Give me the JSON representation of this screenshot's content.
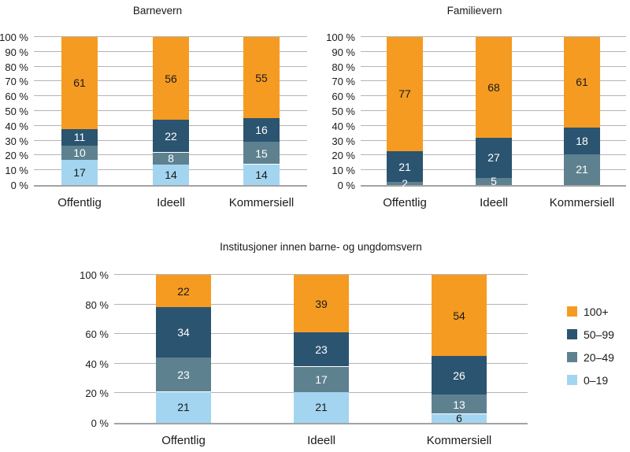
{
  "series_styles": {
    "100+": {
      "fill": "#F59B22",
      "value_label_color": "#1A1A1A"
    },
    "50–99": {
      "fill": "#2B5470",
      "value_label_color": "#FFFFFF"
    },
    "20–49": {
      "fill": "#5E8190",
      "value_label_color": "#FFFFFF"
    },
    "0–19": {
      "fill": "#A3D5F0",
      "value_label_color": "#1A1A1A"
    }
  },
  "legend": {
    "position": "right",
    "items": [
      {
        "label": "100+",
        "color": "#F59B22"
      },
      {
        "label": "50–99",
        "color": "#2B5470"
      },
      {
        "label": "20–49",
        "color": "#5E8190"
      },
      {
        "label": "0–19",
        "color": "#A3D5F0"
      }
    ]
  },
  "chart_data": [
    {
      "type": "bar",
      "stacked": true,
      "title": "Barnevern",
      "categories": [
        "Offentlig",
        "Ideell",
        "Kommersiell"
      ],
      "series": [
        {
          "name": "0–19",
          "values": [
            17,
            14,
            14
          ]
        },
        {
          "name": "20–49",
          "values": [
            10,
            8,
            15
          ]
        },
        {
          "name": "50–99",
          "values": [
            11,
            22,
            16
          ]
        },
        {
          "name": "100+",
          "values": [
            61,
            56,
            55
          ]
        }
      ],
      "ylim": [
        0,
        100
      ],
      "grid": true,
      "y_tick_labels": [
        "100 %",
        "90 %",
        "80 %",
        "70 %",
        "60 %",
        "50 %",
        "40 %",
        "30 %",
        "20 %",
        "10 %",
        "0 %"
      ]
    },
    {
      "type": "bar",
      "stacked": true,
      "title": "Familievern",
      "categories": [
        "Offentlig",
        "Ideell",
        "Kommersiell"
      ],
      "series": [
        {
          "name": "20–49",
          "values": [
            2,
            5,
            21
          ]
        },
        {
          "name": "50–99",
          "values": [
            21,
            27,
            18
          ]
        },
        {
          "name": "100+",
          "values": [
            77,
            68,
            61
          ]
        }
      ],
      "ylim": [
        0,
        100
      ],
      "grid": true,
      "y_tick_labels": [
        "100 %",
        "90 %",
        "80 %",
        "70 %",
        "60 %",
        "50 %",
        "40 %",
        "30 %",
        "20 %",
        "10 %",
        "0 %"
      ]
    },
    {
      "type": "bar",
      "stacked": true,
      "title": "Institusjoner innen barne- og ungdomsvern",
      "categories": [
        "Offentlig",
        "Ideell",
        "Kommersiell"
      ],
      "series": [
        {
          "name": "0–19",
          "values": [
            21,
            21,
            6
          ]
        },
        {
          "name": "20–49",
          "values": [
            23,
            17,
            13
          ]
        },
        {
          "name": "50–99",
          "values": [
            34,
            23,
            26
          ]
        },
        {
          "name": "100+",
          "values": [
            22,
            39,
            54
          ]
        }
      ],
      "ylim": [
        0,
        100
      ],
      "grid": true,
      "y_tick_labels": [
        "100 %",
        "80 %",
        "60 %",
        "40 %",
        "20 %",
        "0 %"
      ]
    }
  ]
}
